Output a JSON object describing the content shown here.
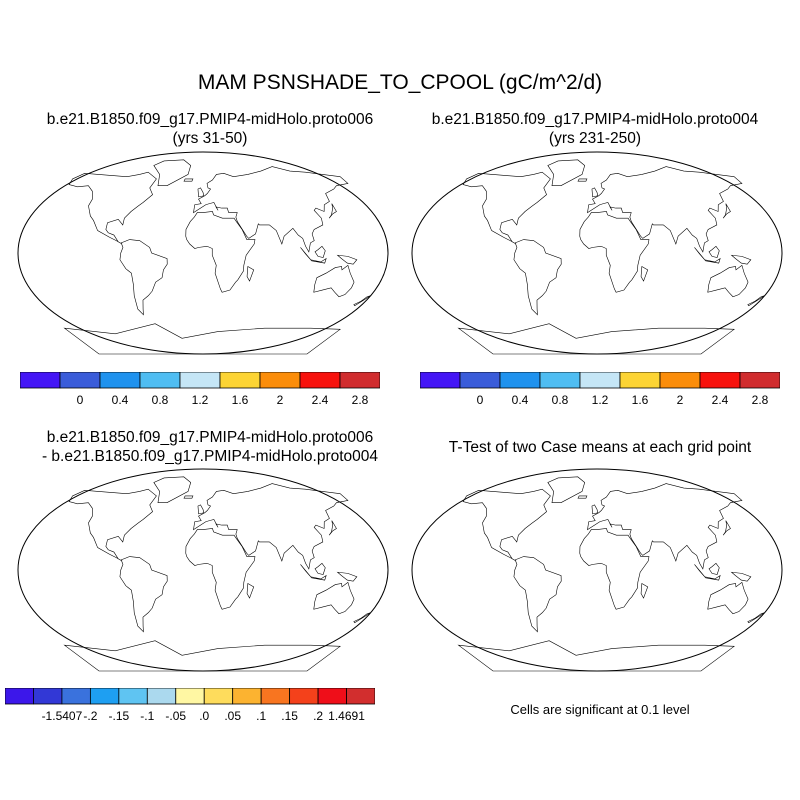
{
  "figure": {
    "title": "MAM PSNSHADE_TO_CPOOL (gC/m^2/d)"
  },
  "panels": {
    "top_left": {
      "title_line1": "b.e21.B1850.f09_g17.PMIP4-midHolo.proto006",
      "title_line2": "(yrs 31-50)"
    },
    "top_right": {
      "title_line1": "b.e21.B1850.f09_g17.PMIP4-midHolo.proto004",
      "title_line2": "(yrs 231-250)"
    },
    "bottom_left": {
      "title_line1": "b.e21.B1850.f09_g17.PMIP4-midHolo.proto006",
      "title_line2": "- b.e21.B1850.f09_g17.PMIP4-midHolo.proto004"
    },
    "bottom_right": {
      "title_line1": "T-Test of two Case means at each grid point",
      "note": "Cells are significant at 0.1 level"
    }
  },
  "colorbars": {
    "field": {
      "colors": [
        "#4416f5",
        "#3a5cd9",
        "#1f92ee",
        "#4fbdf2",
        "#c5e6f6",
        "#fcd434",
        "#fb8d0a",
        "#f7120d",
        "#d02c2e"
      ],
      "labels": [
        "0",
        "0.4",
        "0.8",
        "1.2",
        "1.6",
        "2",
        "2.4",
        "2.8"
      ]
    },
    "difference": {
      "colors": [
        "#3c17ea",
        "#3238d6",
        "#3a72dd",
        "#1e9ff2",
        "#5fc4f2",
        "#abd9ee",
        "#fff7a3",
        "#fedc5c",
        "#fcb330",
        "#f87520",
        "#f4411b",
        "#ef0e19",
        "#d22e2e"
      ],
      "labels": [
        "-1.5407",
        "-.2",
        "-.15",
        "-.1",
        "-.05",
        ".0",
        ".05",
        ".1",
        ".15",
        ".2",
        "1.4691"
      ]
    }
  },
  "map_colors": {
    "ocean": "#ffffff",
    "land_low": "#3a5cd9",
    "land_mid": "#1f92ee",
    "land_high": "#d02c2e",
    "diff_neutral": "#fff7a3",
    "diff_pale": "#abd9ee",
    "significant": "#ef0e19"
  }
}
